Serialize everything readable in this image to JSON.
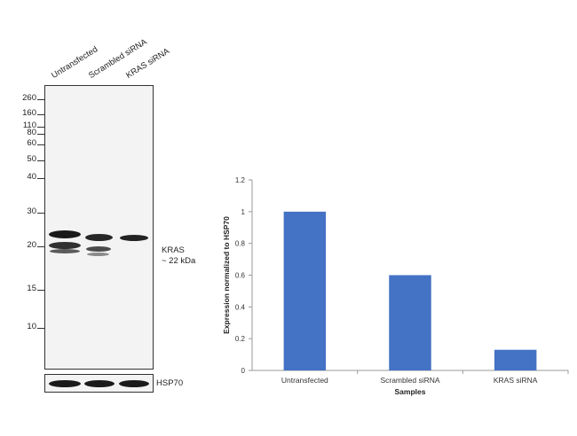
{
  "blot": {
    "lanes": [
      "Untransfected",
      "Scrambled siRNA",
      "KRAS siRNA"
    ],
    "markers": [
      "260",
      "160",
      "110",
      "80",
      "60",
      "50",
      "40",
      "30",
      "20",
      "15",
      "10"
    ],
    "target_label": "KRAS",
    "target_size": "~ 22 kDa",
    "loading_control": "HSP70"
  },
  "chart_data": {
    "type": "bar",
    "categories": [
      "Untransfected",
      "Scrambled siRNA",
      "KRAS siRNA"
    ],
    "values": [
      1.0,
      0.6,
      0.13
    ],
    "xlabel": "Samples",
    "ylabel": "Expression normalized to HSP70",
    "ylim": [
      0,
      1.2
    ],
    "yticks": [
      "0",
      "0.2",
      "0.4",
      "0.6",
      "0.8",
      "1",
      "1.2"
    ],
    "bar_color": "#4472c4",
    "grid": false
  }
}
